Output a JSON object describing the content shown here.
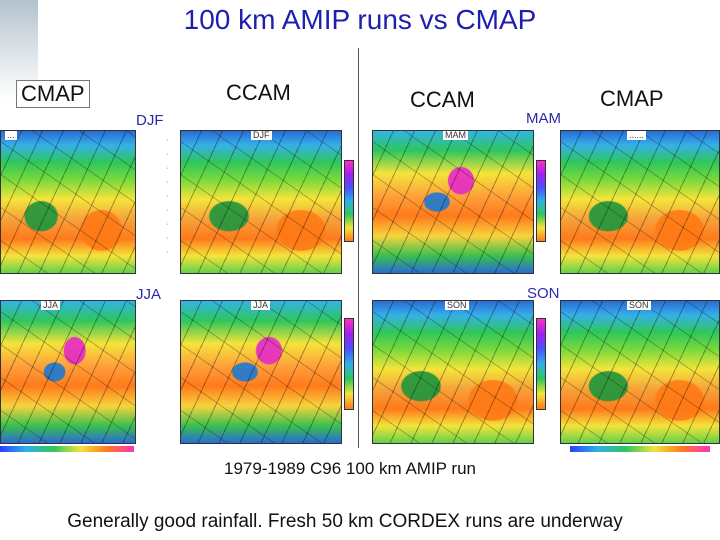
{
  "slide": {
    "title": "100 km AMIP runs vs CMAP",
    "caption": "1979-1989 C96 100 km AMIP run",
    "footer": "Generally good rainfall. Fresh 50 km CORDEX runs are underway"
  },
  "column_labels": {
    "left_obs": "CMAP",
    "left_model": "CCAM",
    "right_model": "CCAM",
    "right_obs": "CMAP"
  },
  "seasons": {
    "djf": "DJF",
    "jja": "JJA",
    "mam": "MAM",
    "son": "SON"
  },
  "panel_tags": {
    "p1": "...",
    "p2": "DJF",
    "p3": "MAM",
    "p4": "......",
    "p5": "JJA",
    "p6": "JJA",
    "p7": "SON",
    "p8": "SON"
  },
  "colors": {
    "title": "#1f1fae",
    "season_label": "#2a2aa8"
  }
}
